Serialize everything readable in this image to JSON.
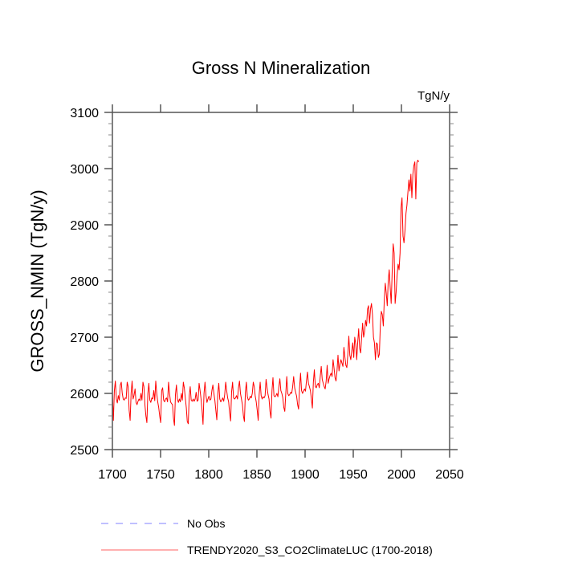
{
  "chart_data": {
    "type": "line",
    "title": "Gross N Mineralization",
    "units_label": "TgN/y",
    "xlabel": "",
    "ylabel": "GROSS_NMIN  (TgN/y)",
    "xlim": [
      1700,
      2050
    ],
    "ylim": [
      2500,
      3100
    ],
    "x_ticks": [
      1700,
      1750,
      1800,
      1850,
      1900,
      1950,
      2000,
      2050
    ],
    "x_tick_labels": [
      "1700",
      "1750",
      "1800",
      "1850",
      "1900",
      "1950",
      "2000",
      "2050"
    ],
    "y_ticks": [
      2500,
      2600,
      2700,
      2800,
      2900,
      3000,
      3100
    ],
    "y_tick_labels": [
      "2500",
      "2600",
      "2700",
      "2800",
      "2900",
      "3000",
      "3100"
    ],
    "y_minor_step": 20,
    "grid": false,
    "legend_position": "bottom-left",
    "legend": [
      {
        "label": "No Obs",
        "color": "#8080ff",
        "style": "dashed"
      },
      {
        "label": "TRENDY2020_S3_CO2ClimateLUC (1700-2018)",
        "color": "#ff0000",
        "style": "solid"
      }
    ],
    "series": [
      {
        "name": "TRENDY2020_S3_CO2ClimateLUC (1700-2018)",
        "color": "#ff0000",
        "x_start": 1700,
        "x_end": 2018,
        "values": [
          2600,
          2552,
          2605,
          2622,
          2590,
          2583,
          2596,
          2588,
          2615,
          2620,
          2600,
          2590,
          2588,
          2592,
          2591,
          2620,
          2612,
          2570,
          2552,
          2600,
          2622,
          2590,
          2597,
          2608,
          2584,
          2580,
          2586,
          2590,
          2587,
          2600,
          2588,
          2620,
          2612,
          2580,
          2560,
          2548,
          2600,
          2618,
          2588,
          2584,
          2592,
          2590,
          2605,
          2587,
          2622,
          2600,
          2585,
          2575,
          2560,
          2548,
          2605,
          2610,
          2588,
          2585,
          2590,
          2592,
          2585,
          2620,
          2600,
          2585,
          2582,
          2580,
          2556,
          2543,
          2598,
          2615,
          2590,
          2584,
          2590,
          2585,
          2600,
          2588,
          2620,
          2610,
          2592,
          2575,
          2550,
          2546,
          2596,
          2612,
          2588,
          2586,
          2590,
          2586,
          2590,
          2602,
          2586,
          2588,
          2618,
          2605,
          2590,
          2570,
          2545,
          2600,
          2620,
          2596,
          2584,
          2590,
          2595,
          2588,
          2590,
          2605,
          2615,
          2600,
          2588,
          2570,
          2553,
          2600,
          2618,
          2590,
          2585,
          2588,
          2592,
          2586,
          2598,
          2620,
          2605,
          2592,
          2585,
          2565,
          2551,
          2603,
          2620,
          2592,
          2590,
          2592,
          2596,
          2590,
          2610,
          2622,
          2600,
          2590,
          2580,
          2560,
          2550,
          2602,
          2620,
          2594,
          2588,
          2590,
          2595,
          2592,
          2600,
          2620,
          2612,
          2595,
          2585,
          2570,
          2552,
          2598,
          2620,
          2596,
          2590,
          2594,
          2592,
          2596,
          2625,
          2610,
          2598,
          2590,
          2568,
          2556,
          2605,
          2628,
          2596,
          2594,
          2596,
          2600,
          2594,
          2612,
          2626,
          2605,
          2600,
          2592,
          2575,
          2568,
          2600,
          2630,
          2600,
          2596,
          2598,
          2602,
          2600,
          2612,
          2630,
          2610,
          2602,
          2595,
          2580,
          2572,
          2610,
          2636,
          2605,
          2600,
          2604,
          2608,
          2604,
          2622,
          2638,
          2618,
          2612,
          2605,
          2590,
          2574,
          2620,
          2642,
          2612,
          2610,
          2616,
          2618,
          2610,
          2630,
          2648,
          2625,
          2618,
          2612,
          2608,
          2622,
          2650,
          2618,
          2626,
          2632,
          2636,
          2630,
          2660,
          2645,
          2628,
          2622,
          2640,
          2668,
          2640,
          2652,
          2660,
          2654,
          2648,
          2682,
          2665,
          2650,
          2646,
          2670,
          2702,
          2668,
          2660,
          2676,
          2690,
          2664,
          2700,
          2688,
          2660,
          2690,
          2715,
          2680,
          2672,
          2700,
          2725,
          2700,
          2710,
          2730,
          2720,
          2750,
          2756,
          2725,
          2750,
          2760,
          2740,
          2700,
          2690,
          2660,
          2690,
          2688,
          2664,
          2670,
          2722,
          2746,
          2740,
          2720,
          2766,
          2796,
          2778,
          2756,
          2800,
          2820,
          2788,
          2760,
          2816,
          2866,
          2850,
          2760,
          2780,
          2810,
          2830,
          2820,
          2850,
          2930,
          2948,
          2880,
          2868,
          2890,
          2920,
          2935,
          2958,
          2980,
          2960,
          2990,
          2948,
          2990,
          3005,
          3012,
          2946,
          3010,
          3015,
          3012
        ]
      }
    ]
  }
}
